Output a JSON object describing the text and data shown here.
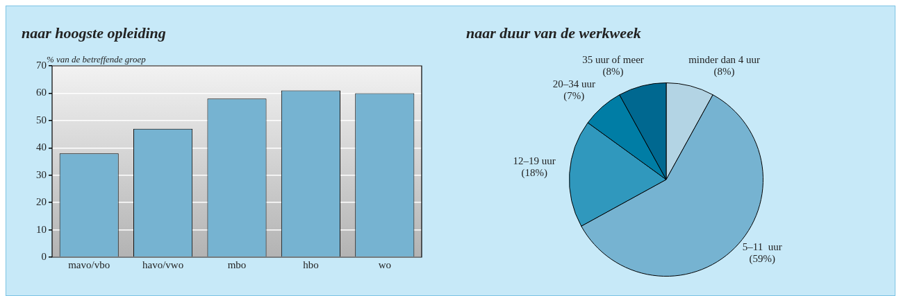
{
  "chart_data": [
    {
      "type": "bar",
      "title": "naar hoogste opleiding",
      "ylabel": "% van de betreffende groep",
      "categories": [
        "mavo/vbo",
        "havo/vwo",
        "mbo",
        "hbo",
        "wo"
      ],
      "values": [
        38,
        47,
        58,
        61,
        60
      ],
      "color": "#76b3d1",
      "ylim": [
        0,
        70
      ],
      "yticks": [
        0,
        10,
        20,
        30,
        40,
        50,
        60,
        70
      ],
      "grid": "y",
      "legend": false
    },
    {
      "type": "pie",
      "title": "naar duur van de werkweek",
      "categories": [
        "minder dan 4 uur",
        "5–11  uur",
        "12–19 uur",
        "20–34 uur",
        "35 uur of meer"
      ],
      "values": [
        8,
        59,
        18,
        7,
        8
      ],
      "colors": [
        "#b3d4e4",
        "#76b3d1",
        "#3098bd",
        "#007da5",
        "#006890"
      ],
      "value_labels": [
        "(8%)",
        "(59%)",
        "(18%)",
        "(7%)",
        "(8%)"
      ],
      "legend": false
    }
  ]
}
